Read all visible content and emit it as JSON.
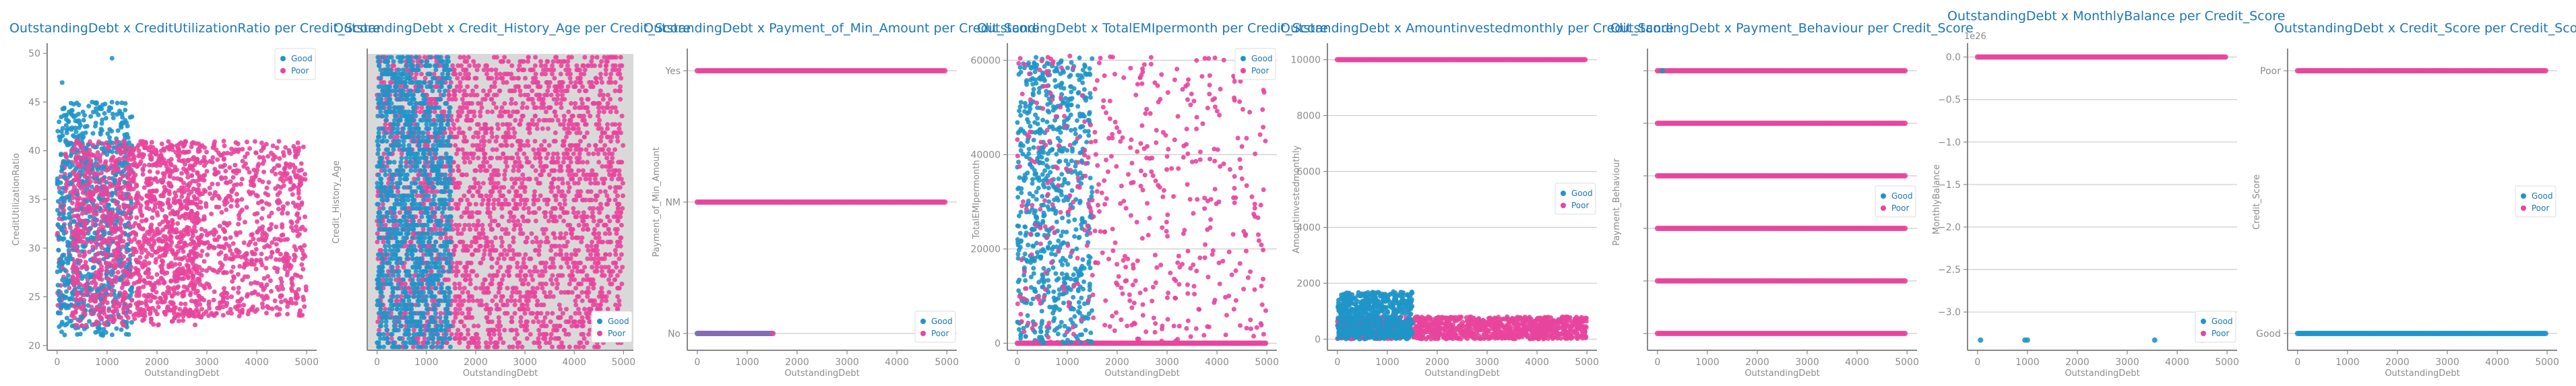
{
  "colors": {
    "good": "#1f95c8",
    "poor": "#e8459c",
    "title": "#1f77b4",
    "axis": "#888888",
    "grid": "#cccccc",
    "axes_background_panel2": "#d9d9d9"
  },
  "legend": {
    "good_label": "Good",
    "poor_label": "Poor"
  },
  "chart_data": [
    {
      "type": "scatter",
      "title": "OutstandingDebt x CreditUtilizationRatio per Credit_Score",
      "xlabel": "OutstandingDebt",
      "ylabel": "CreditUtilizationRatio",
      "xlim": [
        -200,
        5200
      ],
      "ylim": [
        19.5,
        50.5
      ],
      "xticks": [
        0,
        1000,
        2000,
        3000,
        4000,
        5000
      ],
      "yticks": [
        20,
        25,
        30,
        35,
        40,
        45,
        50
      ],
      "grid": false,
      "legend_position": "top-right",
      "series": [
        {
          "name": "Good",
          "x_range": [
            0,
            1500
          ],
          "y_range": [
            21,
            49
          ],
          "description_points": [
            [
              100,
              47
            ],
            [
              1100,
              49.5
            ],
            [
              700,
              45
            ],
            [
              300,
              22
            ]
          ]
        },
        {
          "name": "Poor",
          "x_range": [
            0,
            4990
          ],
          "y_range": [
            22,
            41.5
          ]
        }
      ]
    },
    {
      "type": "scatter",
      "title": "OutstandingDebt x Credit_History_Age per Credit_Score",
      "xlabel": "OutstandingDebt",
      "ylabel": "Credit_History_Age",
      "xlim": [
        -200,
        5200
      ],
      "ylim": [
        0,
        1
      ],
      "xticks": [
        0,
        1000,
        2000,
        3000,
        4000,
        5000
      ],
      "yticks": [],
      "grid": false,
      "legend_position": "bottom-right",
      "series": [
        {
          "name": "Good",
          "x_range": [
            0,
            1500
          ]
        },
        {
          "name": "Poor",
          "x_range": [
            0,
            4990
          ]
        }
      ]
    },
    {
      "type": "scatter",
      "title": "OutstandingDebt x Payment_of_Min_Amount per Credit_Score",
      "xlabel": "OutstandingDebt",
      "ylabel": "Payment_of_Min_Amount",
      "xlim": [
        -200,
        5200
      ],
      "categories": [
        "No",
        "NM",
        "Yes"
      ],
      "yticks": [
        "No",
        "NM",
        "Yes"
      ],
      "grid": true,
      "legend_position": "bottom-right",
      "series": [
        {
          "name": "Good",
          "category": "No",
          "x_range": [
            0,
            1500
          ]
        },
        {
          "name": "Poor",
          "category": "Yes",
          "x_range": [
            0,
            4990
          ]
        },
        {
          "name": "Poor",
          "category": "NM",
          "x_range": [
            0,
            4990
          ]
        },
        {
          "name": "Poor",
          "category": "No",
          "x_range": [
            0,
            1500
          ]
        }
      ]
    },
    {
      "type": "scatter",
      "title": "OutstandingDebt x TotalEMIpermonth per Credit_Score",
      "xlabel": "OutstandingDebt",
      "ylabel": "TotalEMIpermonth",
      "xlim": [
        -200,
        5200
      ],
      "ylim": [
        -1500,
        62500
      ],
      "xticks": [
        0,
        1000,
        2000,
        3000,
        4000,
        5000
      ],
      "yticks": [
        0,
        20000,
        40000,
        60000
      ],
      "grid": true,
      "legend_position": "top-right",
      "series": [
        {
          "name": "Good",
          "x_range": [
            0,
            1500
          ],
          "y_range": [
            0,
            61000
          ]
        },
        {
          "name": "Poor",
          "x_range": [
            0,
            4990
          ],
          "y_range": [
            0,
            61000
          ]
        }
      ]
    },
    {
      "type": "scatter",
      "title": "OutstandingDebt x Amountinvestedmonthly per Credit_Score",
      "xlabel": "OutstandingDebt",
      "ylabel": "Amountinvestedmonthly",
      "xlim": [
        -200,
        5200
      ],
      "ylim": [
        -400,
        10400
      ],
      "xticks": [
        0,
        1000,
        2000,
        3000,
        4000,
        5000
      ],
      "yticks": [
        0,
        2000,
        4000,
        6000,
        8000,
        10000
      ],
      "grid": true,
      "legend_position": "center-right",
      "series": [
        {
          "name": "Good",
          "x_range": [
            0,
            1500
          ],
          "y_range": [
            0,
            1700
          ],
          "extra_level": 10000
        },
        {
          "name": "Poor",
          "x_range": [
            0,
            4990
          ],
          "y_range": [
            0,
            800
          ],
          "extra_level": 10000
        }
      ]
    },
    {
      "type": "scatter",
      "title": "OutstandingDebt x Payment_Behaviour per Credit_Score",
      "xlabel": "OutstandingDebt",
      "ylabel": "Payment_Behaviour",
      "xlim": [
        -200,
        5200
      ],
      "levels": 6,
      "yticks": [],
      "grid": true,
      "legend_position": "center-right",
      "series": [
        {
          "name": "Good",
          "x_range": [
            0,
            1500
          ]
        },
        {
          "name": "Poor",
          "x_range": [
            0,
            4990
          ]
        }
      ]
    },
    {
      "type": "scatter",
      "title": "OutstandingDebt x MonthlyBalance per Credit_Score",
      "xlabel": "OutstandingDebt",
      "ylabel": "MonthlyBalance",
      "y_multiplier": "1e26",
      "xlim": [
        -200,
        5200
      ],
      "ylim": [
        -3.45,
        0.1
      ],
      "xticks": [
        0,
        1000,
        2000,
        3000,
        4000,
        5000
      ],
      "yticks": [
        0.0,
        -0.5,
        -1.0,
        -1.5,
        -2.0,
        -2.5,
        -3.0
      ],
      "ytick_labels": [
        "0.0",
        "−0.5",
        "−1.0",
        "−1.5",
        "−2.0",
        "−2.5",
        "−3.0"
      ],
      "grid": true,
      "legend_position": "bottom-right",
      "series": [
        {
          "name": "Good",
          "points": [
            [
              60,
              -3.33
            ],
            [
              950,
              -3.33
            ],
            [
              1000,
              -3.33
            ],
            [
              3550,
              -3.33
            ]
          ],
          "baseline_x_range": [
            0,
            1500
          ]
        },
        {
          "name": "Poor",
          "baseline_x_range": [
            0,
            4990
          ],
          "points": [
            [
              4500,
              -3.33
            ]
          ]
        }
      ]
    },
    {
      "type": "scatter",
      "title": "OutstandingDebt x Credit_Score per Credit_Score",
      "xlabel": "OutstandingDebt",
      "ylabel": "Credit_Score",
      "xlim": [
        -200,
        5200
      ],
      "categories": [
        "Good",
        "Poor"
      ],
      "yticks": [
        "Good",
        "Poor"
      ],
      "grid": true,
      "legend_position": "center-right",
      "series": [
        {
          "name": "Good",
          "category": "Good",
          "x_range": [
            0,
            4990
          ]
        },
        {
          "name": "Poor",
          "category": "Poor",
          "x_range": [
            0,
            4990
          ]
        }
      ]
    }
  ]
}
